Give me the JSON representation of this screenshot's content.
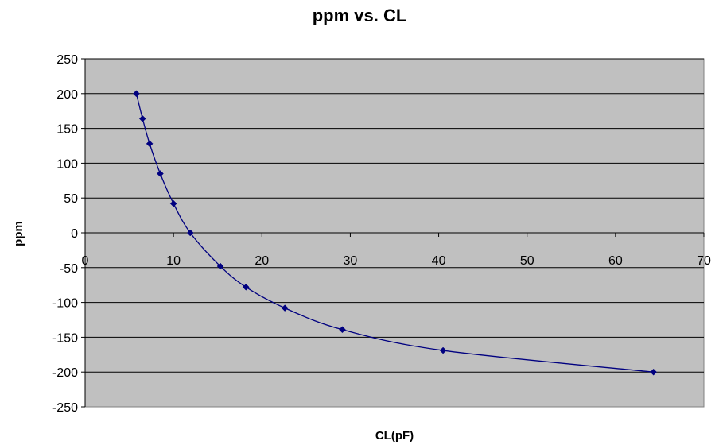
{
  "chart_data": {
    "type": "scatter",
    "title": "ppm vs. CL",
    "xlabel": "CL(pF)",
    "ylabel": "ppm",
    "xlim": [
      0,
      70
    ],
    "ylim": [
      -250,
      250
    ],
    "xticks": [
      0,
      10,
      20,
      30,
      40,
      50,
      60,
      70
    ],
    "yticks": [
      -250,
      -200,
      -150,
      -100,
      -50,
      0,
      50,
      100,
      150,
      200,
      250
    ],
    "grid": "horizontal",
    "legend": "none",
    "colors": {
      "plot_area": "#c0c0c0",
      "series": "#000080",
      "gridline": "#000000"
    },
    "series": [
      {
        "marker": "diamond",
        "line": "smoothed",
        "x": [
          5.8,
          6.5,
          7.3,
          8.5,
          10.0,
          11.9,
          15.3,
          18.2,
          22.6,
          29.1,
          40.5,
          64.3
        ],
        "y": [
          200,
          164,
          128,
          85,
          42,
          0,
          -48,
          -78,
          -108,
          -139,
          -169,
          -200
        ]
      }
    ]
  }
}
